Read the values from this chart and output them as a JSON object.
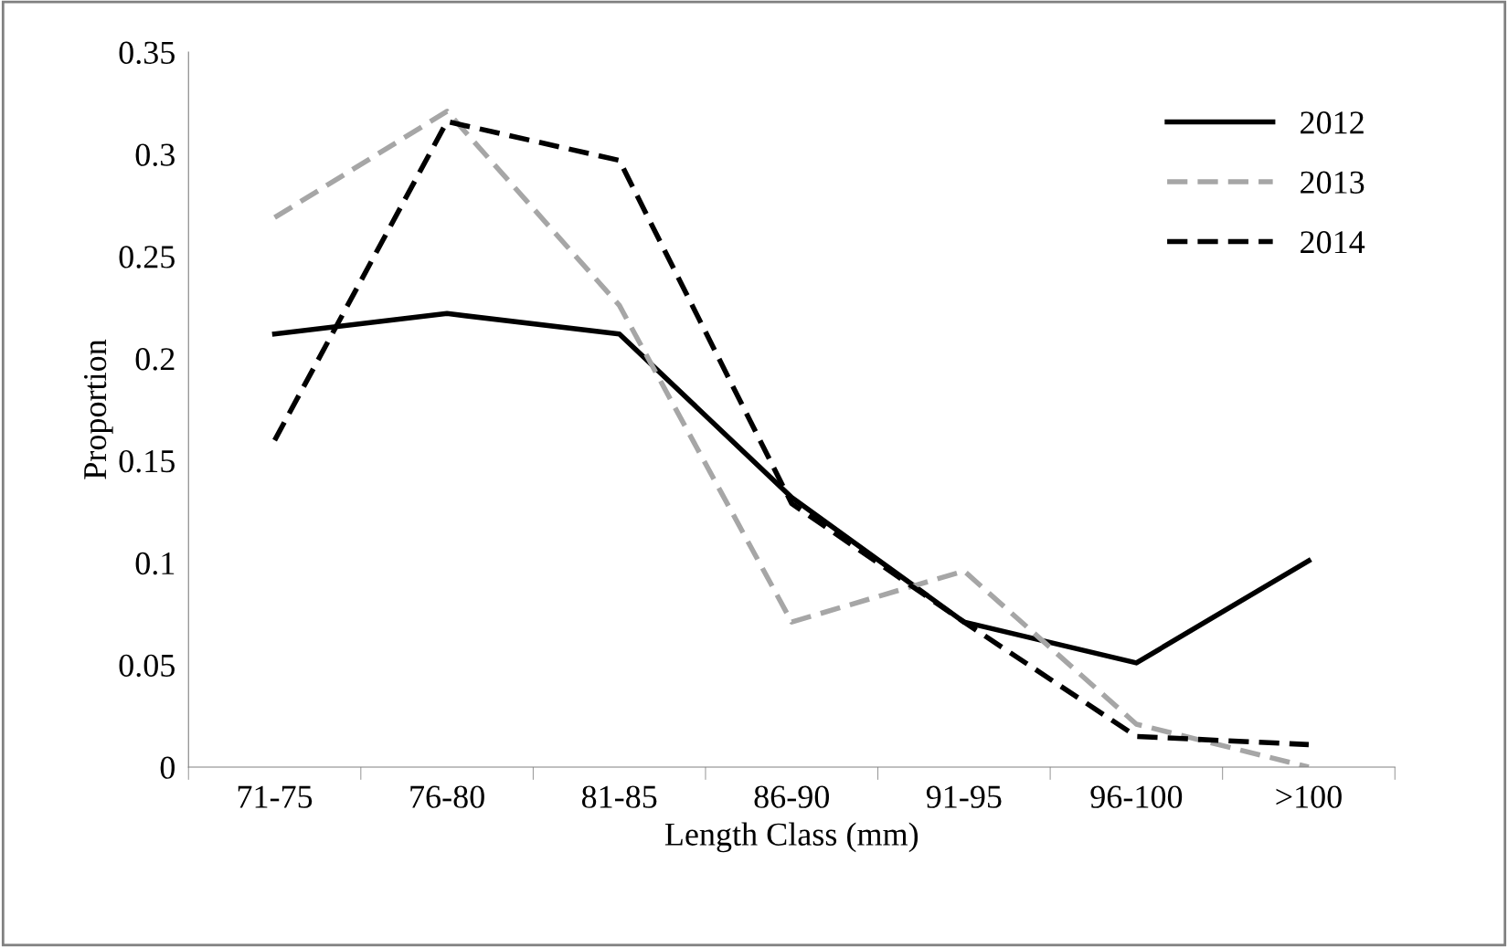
{
  "chart_data": {
    "type": "line",
    "xlabel": "Length Class (mm)",
    "ylabel": "Proportion",
    "categories": [
      "71-75",
      "76-80",
      "81-85",
      "86-90",
      "91-95",
      "96-100",
      ">100"
    ],
    "series": [
      {
        "name": "2012",
        "color": "#000000",
        "line_style": "solid",
        "values": [
          0.212,
          0.222,
          0.212,
          0.132,
          0.071,
          0.051,
          0.101
        ]
      },
      {
        "name": "2013",
        "color": "#a6a6a6",
        "line_style": "dashed",
        "values": [
          0.269,
          0.321,
          0.226,
          0.071,
          0.096,
          0.021,
          0.0
        ]
      },
      {
        "name": "2014",
        "color": "#000000",
        "line_style": "dashed",
        "values": [
          0.16,
          0.316,
          0.297,
          0.129,
          0.071,
          0.015,
          0.011
        ]
      }
    ],
    "ylim": [
      0,
      0.35
    ],
    "yticks": [
      0,
      0.05,
      0.1,
      0.15,
      0.2,
      0.25,
      0.3,
      0.35
    ],
    "grid": false,
    "legend": "top right",
    "marker": "none"
  }
}
